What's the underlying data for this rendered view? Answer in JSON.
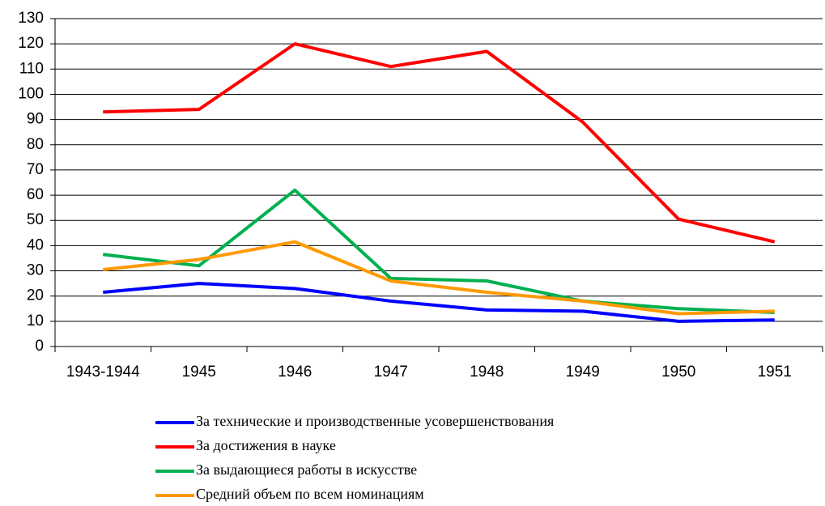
{
  "chart_data": {
    "type": "line",
    "categories": [
      "1943-1944",
      "1945",
      "1946",
      "1947",
      "1948",
      "1949",
      "1950",
      "1951"
    ],
    "series": [
      {
        "name": "За технические и производственные усовершенствования",
        "color": "#0000ff",
        "values": [
          21.5,
          25,
          23,
          18,
          14.5,
          14,
          10,
          10.5
        ]
      },
      {
        "name": "За достижения в науке",
        "color": "#ff0000",
        "values": [
          93,
          94,
          120,
          111,
          117,
          89,
          50.5,
          41.5
        ]
      },
      {
        "name": "За выдающиеся работы в искусстве",
        "color": "#00b050",
        "values": [
          36.5,
          32,
          62,
          27,
          26,
          18,
          15,
          13.5
        ]
      },
      {
        "name": "Средний объем по всем номинациям",
        "color": "#ff9900",
        "values": [
          30.5,
          34.5,
          41.5,
          26,
          21.5,
          18,
          13,
          14
        ]
      }
    ],
    "ylim": [
      0,
      130
    ],
    "yticks": [
      0,
      10,
      20,
      30,
      40,
      50,
      60,
      70,
      80,
      90,
      100,
      110,
      120,
      130
    ],
    "grid": true,
    "legend": "bottom"
  }
}
